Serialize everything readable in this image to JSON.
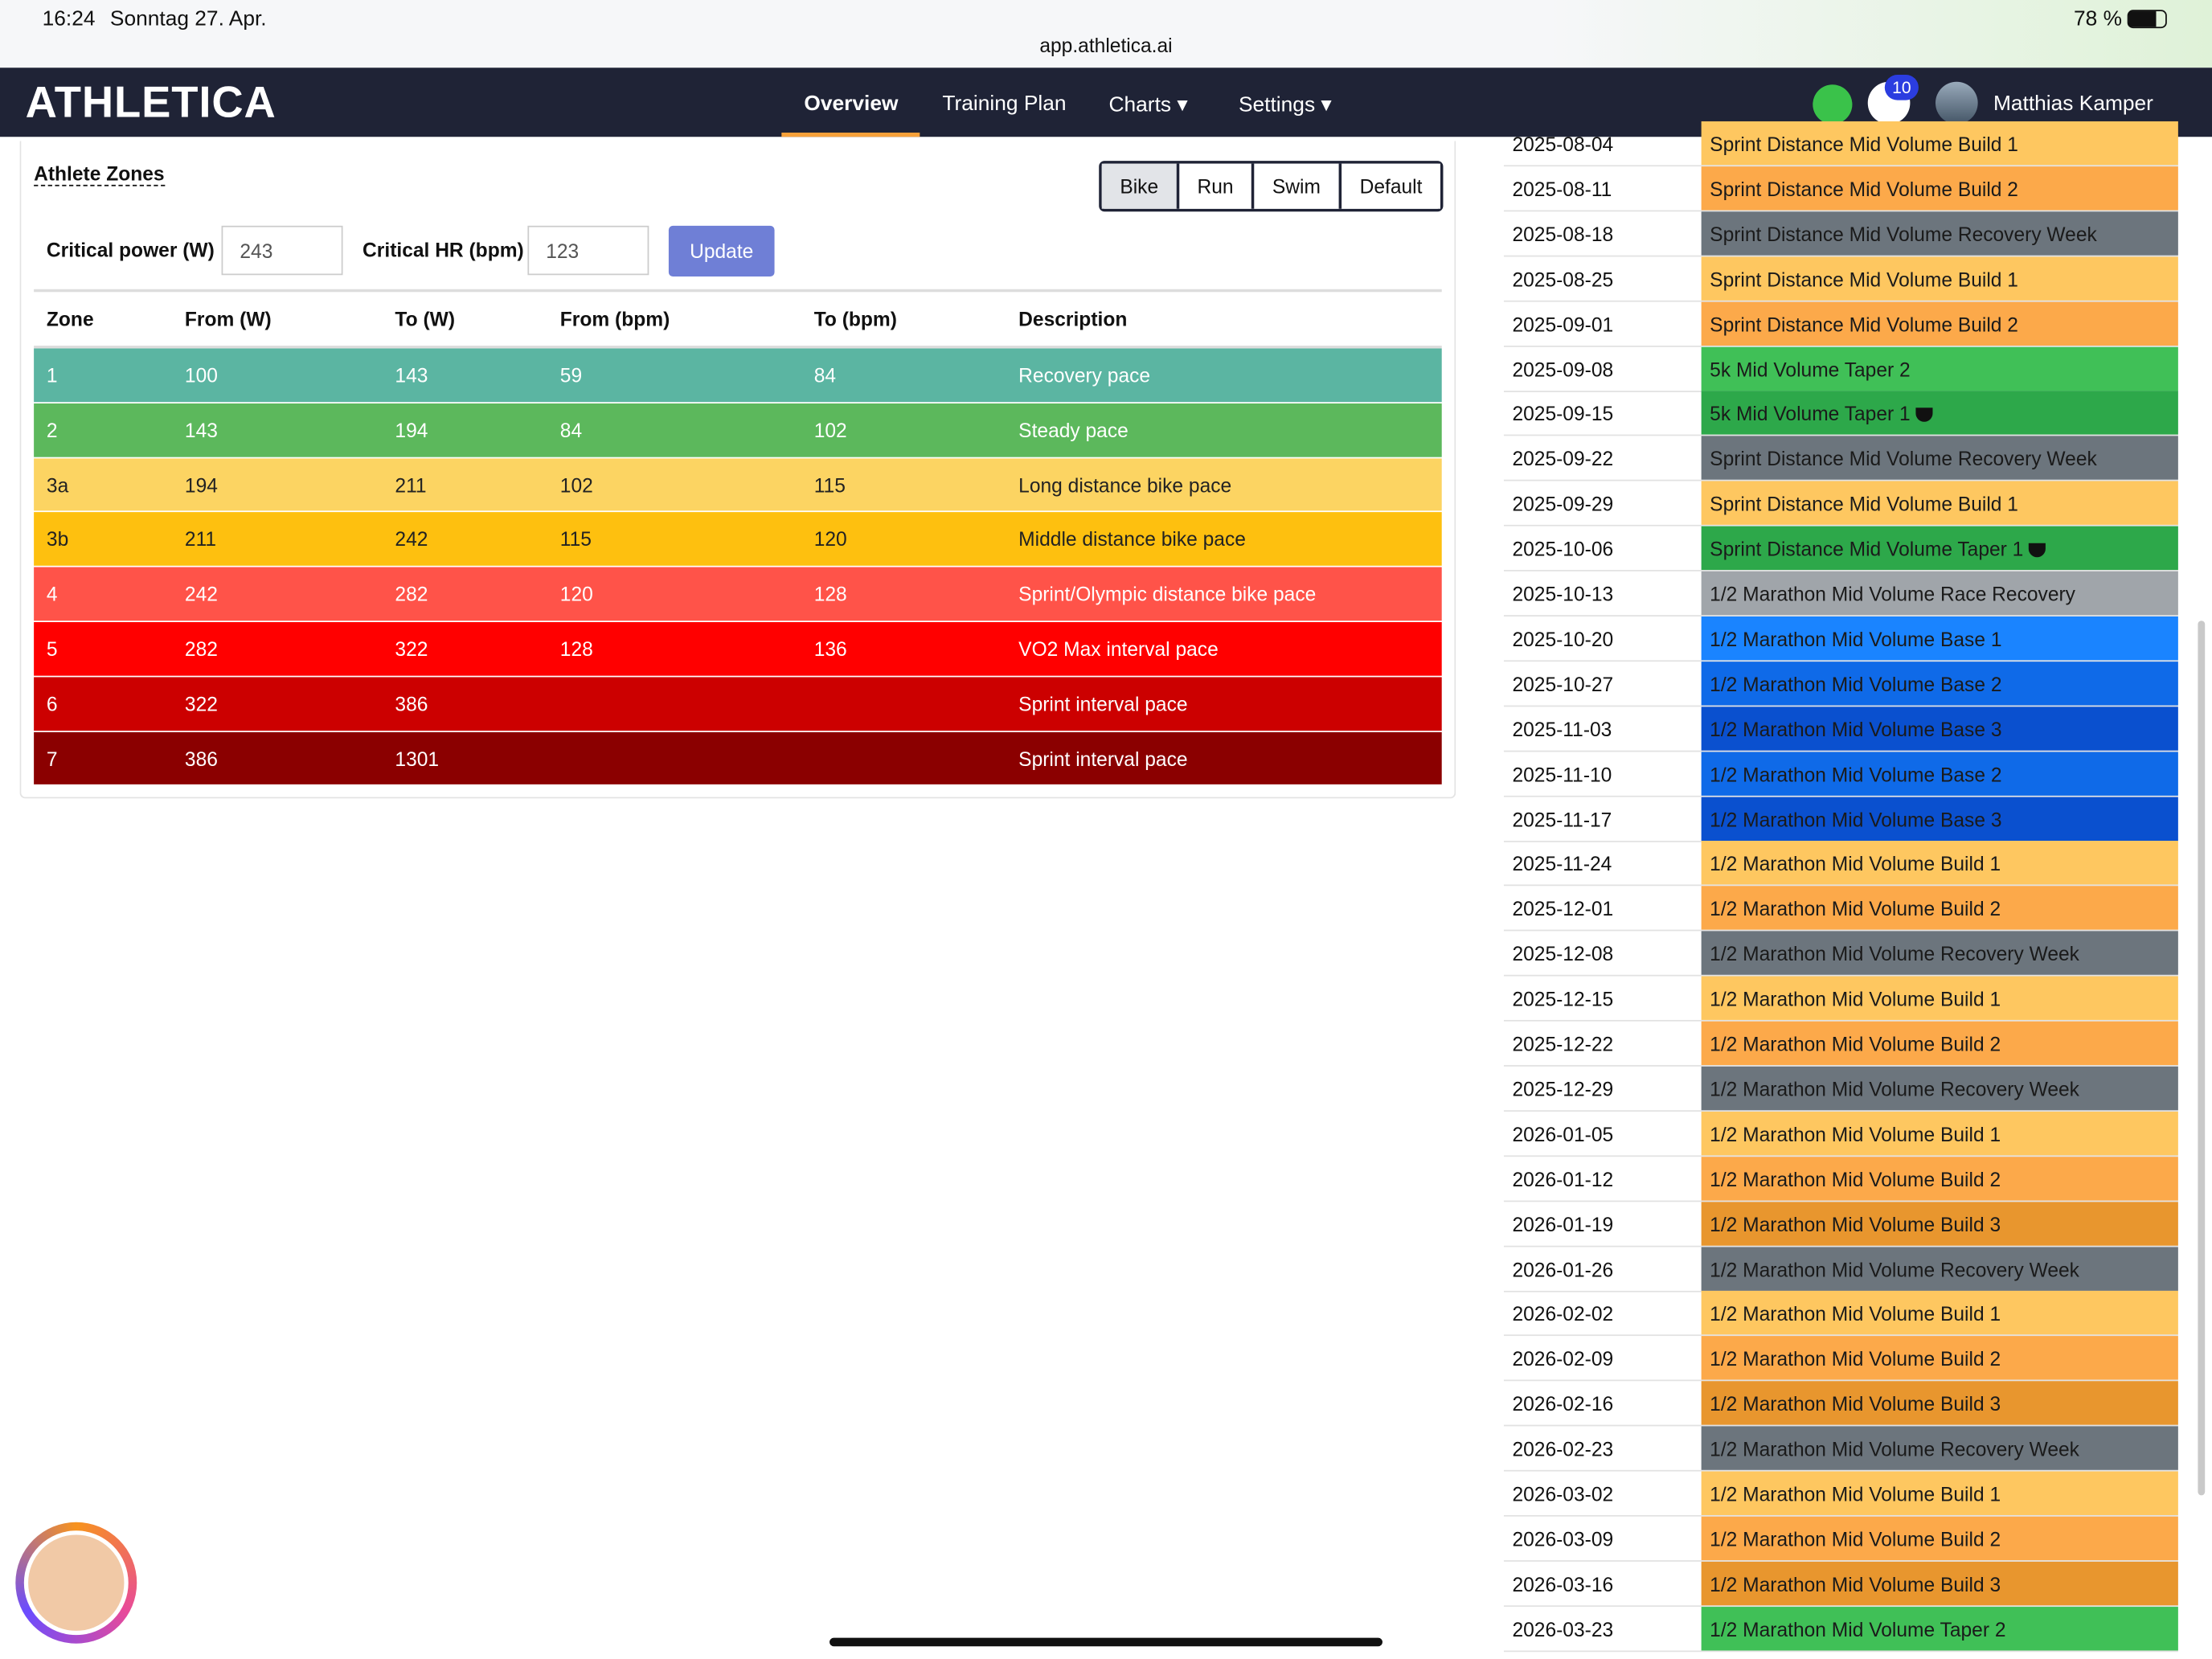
{
  "status_bar": {
    "time": "16:24",
    "date": "Sonntag 27. Apr.",
    "url": "app.athletica.ai",
    "battery": "78 %"
  },
  "nav": {
    "logo": "ATHLETICA",
    "items": [
      "Overview",
      "Training Plan",
      "Charts",
      "Settings"
    ],
    "active": 0,
    "notifications": "10",
    "user": "Matthias Kamper"
  },
  "zones": {
    "title": "Athlete Zones",
    "sports": [
      "Bike",
      "Run",
      "Swim",
      "Default"
    ],
    "active_sport": 0,
    "critical_power_label": "Critical power (W)",
    "critical_power": "243",
    "critical_hr_label": "Critical HR (bpm)",
    "critical_hr": "123",
    "update": "Update",
    "columns": [
      "Zone",
      "From (W)",
      "To (W)",
      "From (bpm)",
      "To (bpm)",
      "Description"
    ],
    "rows": [
      {
        "cells": [
          "1",
          "100",
          "143",
          "59",
          "84",
          "Recovery pace"
        ],
        "color": "#5bb5a2",
        "text_color": "#ffffff"
      },
      {
        "cells": [
          "2",
          "143",
          "194",
          "84",
          "102",
          "Steady pace"
        ],
        "color": "#5cb85c",
        "text_color": "#ffffff"
      },
      {
        "cells": [
          "3a",
          "194",
          "211",
          "102",
          "115",
          "Long distance bike pace"
        ],
        "color": "#fcd462",
        "text_color": "#222222"
      },
      {
        "cells": [
          "3b",
          "211",
          "242",
          "115",
          "120",
          "Middle distance bike pace"
        ],
        "color": "#fec00f",
        "text_color": "#222222"
      },
      {
        "cells": [
          "4",
          "242",
          "282",
          "120",
          "128",
          "Sprint/Olympic distance bike pace"
        ],
        "color": "#ff5349",
        "text_color": "#ffffff"
      },
      {
        "cells": [
          "5",
          "282",
          "322",
          "128",
          "136",
          "VO2 Max interval pace"
        ],
        "color": "#ff0000",
        "text_color": "#ffffff"
      },
      {
        "cells": [
          "6",
          "322",
          "386",
          null,
          null,
          "Sprint interval pace"
        ],
        "color": "#cc0000",
        "text_color": "#ffffff"
      },
      {
        "cells": [
          "7",
          "386",
          "1301",
          null,
          null,
          "Sprint interval pace"
        ],
        "color": "#8b0000",
        "text_color": "#ffffff"
      }
    ]
  },
  "plan": {
    "rows": [
      {
        "date": "2025-08-04",
        "label": "Sprint Distance Mid Volume Build 1",
        "color": "#fec760"
      },
      {
        "date": "2025-08-11",
        "label": "Sprint Distance Mid Volume Build 2",
        "color": "#fca94a"
      },
      {
        "date": "2025-08-18",
        "label": "Sprint Distance Mid Volume Recovery Week",
        "color": "#6c757d"
      },
      {
        "date": "2025-08-25",
        "label": "Sprint Distance Mid Volume Build 1",
        "color": "#fec760"
      },
      {
        "date": "2025-09-01",
        "label": "Sprint Distance Mid Volume Build 2",
        "color": "#fca94a"
      },
      {
        "date": "2025-09-08",
        "label": "5k Mid Volume Taper 2",
        "color": "#40c057"
      },
      {
        "date": "2025-09-15",
        "label": "5k Mid Volume Taper 1",
        "color": "#2da84a",
        "trophy": true
      },
      {
        "date": "2025-09-22",
        "label": "Sprint Distance Mid Volume Recovery Week",
        "color": "#6c757d"
      },
      {
        "date": "2025-09-29",
        "label": "Sprint Distance Mid Volume Build 1",
        "color": "#fec760"
      },
      {
        "date": "2025-10-06",
        "label": "Sprint Distance Mid Volume Taper 1",
        "color": "#2da84a",
        "trophy": true
      },
      {
        "date": "2025-10-13",
        "label": "1/2 Marathon Mid Volume Race Recovery",
        "color": "#a0a5aa"
      },
      {
        "date": "2025-10-20",
        "label": "1/2 Marathon Mid Volume Base 1",
        "color": "#1a84ff"
      },
      {
        "date": "2025-10-27",
        "label": "1/2 Marathon Mid Volume Base 2",
        "color": "#0f6ae8"
      },
      {
        "date": "2025-11-03",
        "label": "1/2 Marathon Mid Volume Base 3",
        "color": "#0a50cf"
      },
      {
        "date": "2025-11-10",
        "label": "1/2 Marathon Mid Volume Base 2",
        "color": "#0f6ae8"
      },
      {
        "date": "2025-11-17",
        "label": "1/2 Marathon Mid Volume Base 3",
        "color": "#0a50cf"
      },
      {
        "date": "2025-11-24",
        "label": "1/2 Marathon Mid Volume Build 1",
        "color": "#fec760"
      },
      {
        "date": "2025-12-01",
        "label": "1/2 Marathon Mid Volume Build 2",
        "color": "#fca94a"
      },
      {
        "date": "2025-12-08",
        "label": "1/2 Marathon Mid Volume Recovery Week",
        "color": "#6c757d"
      },
      {
        "date": "2025-12-15",
        "label": "1/2 Marathon Mid Volume Build 1",
        "color": "#fec760"
      },
      {
        "date": "2025-12-22",
        "label": "1/2 Marathon Mid Volume Build 2",
        "color": "#fca94a"
      },
      {
        "date": "2025-12-29",
        "label": "1/2 Marathon Mid Volume Recovery Week",
        "color": "#6c757d"
      },
      {
        "date": "2026-01-05",
        "label": "1/2 Marathon Mid Volume Build 1",
        "color": "#fec760"
      },
      {
        "date": "2026-01-12",
        "label": "1/2 Marathon Mid Volume Build 2",
        "color": "#fca94a"
      },
      {
        "date": "2026-01-19",
        "label": "1/2 Marathon Mid Volume Build 3",
        "color": "#e8962e"
      },
      {
        "date": "2026-01-26",
        "label": "1/2 Marathon Mid Volume Recovery Week",
        "color": "#6c757d"
      },
      {
        "date": "2026-02-02",
        "label": "1/2 Marathon Mid Volume Build 1",
        "color": "#fec760"
      },
      {
        "date": "2026-02-09",
        "label": "1/2 Marathon Mid Volume Build 2",
        "color": "#fca94a"
      },
      {
        "date": "2026-02-16",
        "label": "1/2 Marathon Mid Volume Build 3",
        "color": "#e8962e"
      },
      {
        "date": "2026-02-23",
        "label": "1/2 Marathon Mid Volume Recovery Week",
        "color": "#6c757d"
      },
      {
        "date": "2026-03-02",
        "label": "1/2 Marathon Mid Volume Build 1",
        "color": "#fec760"
      },
      {
        "date": "2026-03-09",
        "label": "1/2 Marathon Mid Volume Build 2",
        "color": "#fca94a"
      },
      {
        "date": "2026-03-16",
        "label": "1/2 Marathon Mid Volume Build 3",
        "color": "#e8962e"
      },
      {
        "date": "2026-03-23",
        "label": "1/2 Marathon Mid Volume Taper 2",
        "color": "#40c057"
      }
    ]
  }
}
